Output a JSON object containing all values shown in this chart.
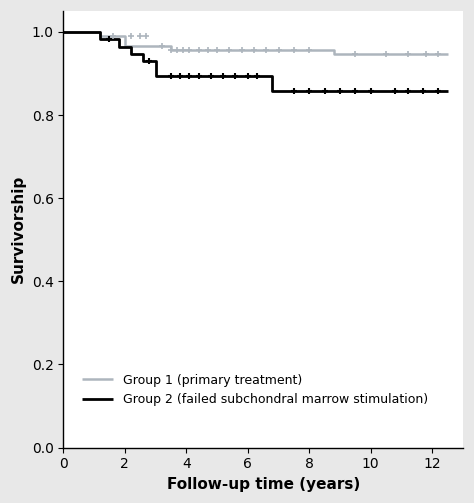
{
  "group1": {
    "label": "Group 1 (primary treatment)",
    "color": "#adb5bd",
    "line_width": 1.8,
    "step_x": [
      0,
      1.2,
      1.2,
      2.0,
      2.0,
      3.2,
      3.5,
      3.8,
      8.8,
      8.8,
      12.5
    ],
    "step_y": [
      1.0,
      1.0,
      0.989,
      0.989,
      0.967,
      0.967,
      0.956,
      0.956,
      0.956,
      0.946,
      0.946
    ],
    "censor_x": [
      1.6,
      2.2,
      2.5,
      2.7,
      3.2,
      3.5,
      3.7,
      3.9,
      4.1,
      4.4,
      4.7,
      5.0,
      5.4,
      5.8,
      6.2,
      6.6,
      7.0,
      7.5,
      8.0,
      9.5,
      10.5,
      11.2,
      11.8,
      12.2
    ],
    "censor_y": [
      0.989,
      0.989,
      0.989,
      0.989,
      0.967,
      0.956,
      0.956,
      0.956,
      0.956,
      0.956,
      0.956,
      0.956,
      0.956,
      0.956,
      0.956,
      0.956,
      0.956,
      0.956,
      0.956,
      0.946,
      0.946,
      0.946,
      0.946,
      0.946
    ]
  },
  "group2": {
    "label": "Group 2 (failed subchondral marrow stimulation)",
    "color": "#000000",
    "line_width": 2.0,
    "step_x": [
      0,
      1.2,
      1.2,
      1.8,
      1.8,
      2.2,
      2.2,
      2.6,
      2.6,
      3.0,
      3.0,
      3.5,
      3.5,
      6.8,
      6.8,
      7.5,
      7.5,
      12.5
    ],
    "step_y": [
      1.0,
      1.0,
      0.982,
      0.982,
      0.964,
      0.964,
      0.946,
      0.946,
      0.929,
      0.929,
      0.893,
      0.893,
      0.893,
      0.893,
      0.857,
      0.857,
      0.857,
      0.857
    ],
    "censor_x": [
      1.5,
      2.8,
      3.5,
      3.8,
      4.1,
      4.4,
      4.8,
      5.2,
      5.6,
      6.0,
      6.3,
      7.5,
      8.0,
      8.5,
      9.0,
      9.5,
      10.0,
      10.8,
      11.2,
      11.7,
      12.2
    ],
    "censor_y": [
      0.982,
      0.929,
      0.893,
      0.893,
      0.893,
      0.893,
      0.893,
      0.893,
      0.893,
      0.893,
      0.893,
      0.857,
      0.857,
      0.857,
      0.857,
      0.857,
      0.857,
      0.857,
      0.857,
      0.857,
      0.857
    ]
  },
  "xlim": [
    0,
    13
  ],
  "ylim": [
    0.0,
    1.05
  ],
  "xticks": [
    0,
    2,
    4,
    6,
    8,
    10,
    12
  ],
  "yticks": [
    0.0,
    0.2,
    0.4,
    0.6,
    0.8,
    1.0
  ],
  "xlabel": "Follow-up time (years)",
  "ylabel": "Survivorship",
  "fig_bg_color": "#e8e8e8",
  "plot_bg_color": "#ffffff"
}
